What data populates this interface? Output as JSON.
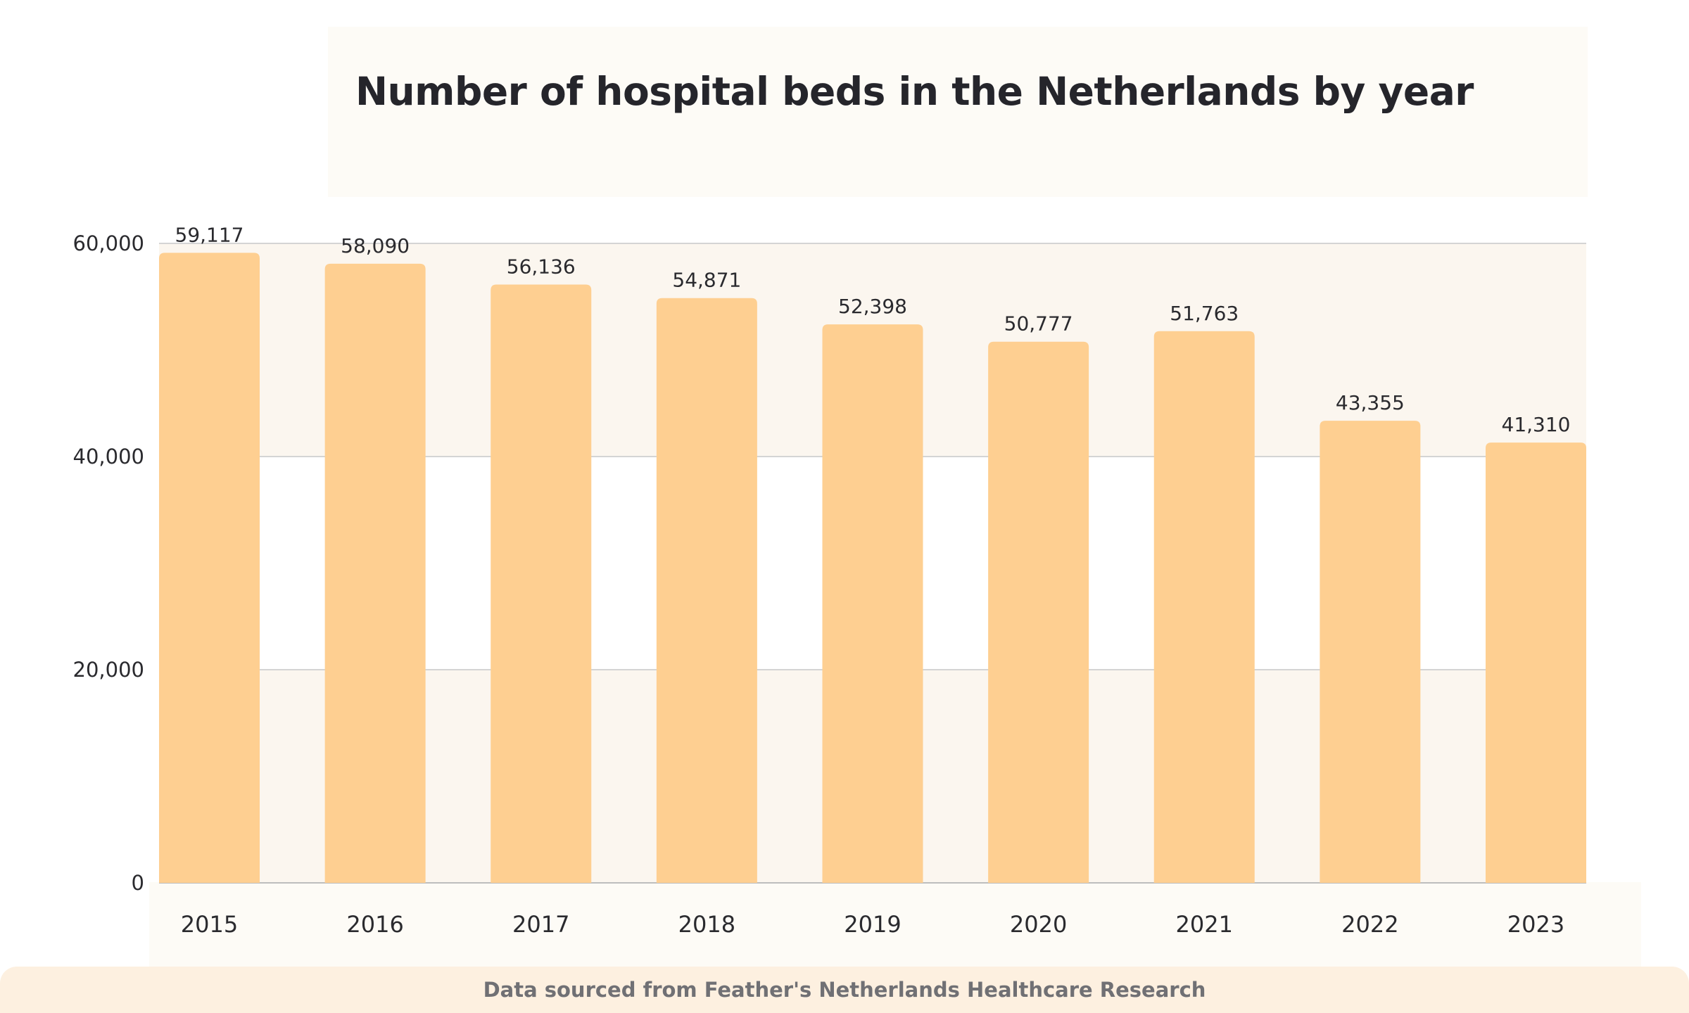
{
  "chart_data": {
    "type": "bar",
    "title": "Number of hospital beds in the Netherlands by year",
    "categories": [
      "2015",
      "2016",
      "2017",
      "2018",
      "2019",
      "2020",
      "2021",
      "2022",
      "2023"
    ],
    "values": [
      59117,
      58090,
      56136,
      54871,
      52398,
      50777,
      51763,
      43355,
      41310
    ],
    "value_labels": [
      "59,117",
      "58,090",
      "56,136",
      "54,871",
      "52,398",
      "50,777",
      "51,763",
      "43,355",
      "41,310"
    ],
    "yticks": [
      0,
      20000,
      40000,
      60000
    ],
    "ytick_labels": [
      "0",
      "20,000",
      "40,000",
      "60,000"
    ],
    "ylim": [
      0,
      60000
    ],
    "xlabel": "",
    "ylabel": "",
    "grid": true,
    "bar_color": "#fecf91",
    "band_color": "#fbf6ef",
    "legend": "none"
  },
  "footer": {
    "source": "Data sourced from Feather's Netherlands Healthcare Research"
  }
}
